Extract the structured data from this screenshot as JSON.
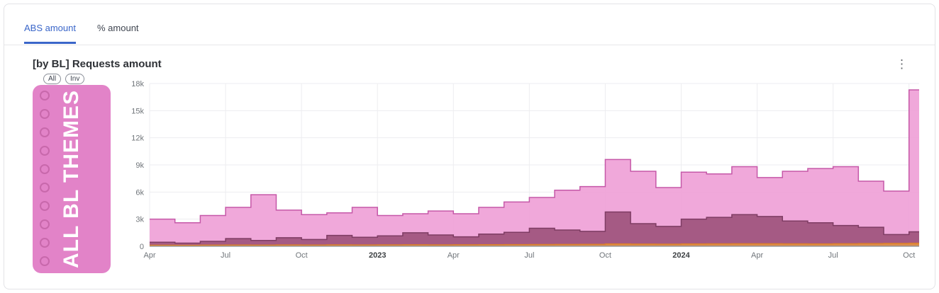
{
  "tabs": [
    {
      "label": "ABS amount",
      "active": true
    },
    {
      "label": "% amount",
      "active": false
    }
  ],
  "card": {
    "title": "[by BL] Requests amount"
  },
  "legend_panel": {
    "overlay_label": "ALL BL THEMES",
    "toggles": [
      {
        "label": "All"
      },
      {
        "label": "Inv"
      }
    ]
  },
  "colors": {
    "active_tab": "#3a66c9",
    "panel_pink": "#e283c8",
    "grid": "#ededf0",
    "axis_label": "#70757a",
    "baseline": "#8d939c"
  },
  "chart_data": {
    "type": "area",
    "subtype": "step",
    "title": "[by BL] Requests amount",
    "x": [
      "2022-04",
      "2022-05",
      "2022-06",
      "2022-07",
      "2022-08",
      "2022-09",
      "2022-10",
      "2022-11",
      "2022-12",
      "2023-01",
      "2023-02",
      "2023-03",
      "2023-04",
      "2023-05",
      "2023-06",
      "2023-07",
      "2023-08",
      "2023-09",
      "2023-10",
      "2023-11",
      "2023-12",
      "2024-01",
      "2024-02",
      "2024-03",
      "2024-04",
      "2024-05",
      "2024-06",
      "2024-07",
      "2024-08",
      "2024-09",
      "2024-10"
    ],
    "x_tick_positions": [
      0,
      3,
      6,
      9,
      12,
      15,
      18,
      21,
      24,
      27,
      30
    ],
    "x_tick_labels": [
      "Apr",
      "Jul",
      "Oct",
      "2023",
      "Apr",
      "Jul",
      "Oct",
      "2024",
      "Apr",
      "Jul",
      "Oct"
    ],
    "x_tick_bold": [
      false,
      false,
      false,
      true,
      false,
      false,
      false,
      true,
      false,
      false,
      false
    ],
    "x_extent": 30.4,
    "ylim": [
      0,
      18000
    ],
    "y_tick_values": [
      0,
      3000,
      6000,
      9000,
      12000,
      15000,
      18000
    ],
    "y_tick_labels": [
      "0",
      "3k",
      "6k",
      "9k",
      "12k",
      "15k",
      "18k"
    ],
    "grid": true,
    "legend_position": "left-overlay",
    "series": [
      {
        "name": "requests-light-pink",
        "fill": "#ee9fd6",
        "stroke": "#c558a8",
        "fill_opacity": 0.9,
        "values": [
          3000,
          2600,
          3400,
          4300,
          5700,
          4000,
          3500,
          3700,
          4300,
          3400,
          3600,
          3900,
          3600,
          4300,
          4900,
          5400,
          6200,
          6600,
          9600,
          8300,
          6500,
          8200,
          8000,
          8800,
          7600,
          8300,
          8600,
          8800,
          7200,
          6100,
          17300
        ]
      },
      {
        "name": "requests-dark-magenta",
        "fill": "#a05580",
        "stroke": "#7e3c63",
        "fill_opacity": 0.95,
        "values": [
          450,
          350,
          550,
          850,
          650,
          950,
          750,
          1200,
          1000,
          1150,
          1500,
          1250,
          1050,
          1350,
          1550,
          2000,
          1800,
          1650,
          3800,
          2500,
          2200,
          3000,
          3200,
          3500,
          3300,
          2800,
          2600,
          2300,
          2100,
          1300,
          1600
        ]
      },
      {
        "name": "requests-blue",
        "fill": "#4263c7",
        "stroke": "#3b5bdb",
        "fill_opacity": 0.9,
        "values": [
          60,
          55,
          60,
          65,
          60,
          70,
          65,
          70,
          70,
          75,
          75,
          70,
          75,
          80,
          80,
          85,
          85,
          90,
          100,
          95,
          90,
          100,
          105,
          105,
          110,
          105,
          100,
          105,
          110,
          115,
          120
        ]
      },
      {
        "name": "requests-orange",
        "fill": "#e8923f",
        "stroke": "#d97f2e",
        "fill_opacity": 0.9,
        "values": [
          120,
          110,
          130,
          140,
          130,
          150,
          140,
          160,
          150,
          160,
          170,
          160,
          170,
          180,
          190,
          200,
          210,
          220,
          260,
          240,
          230,
          260,
          270,
          280,
          280,
          270,
          260,
          280,
          300,
          320,
          340
        ]
      }
    ]
  }
}
